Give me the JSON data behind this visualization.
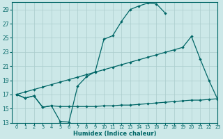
{
  "bg_color": "#cce8e8",
  "line_color": "#006666",
  "grid_color": "#aacccc",
  "xlabel": "Humidex (Indice chaleur)",
  "ylim": [
    13,
    30
  ],
  "xlim": [
    -0.5,
    23
  ],
  "yticks": [
    13,
    15,
    17,
    19,
    21,
    23,
    25,
    27,
    29
  ],
  "xticks": [
    0,
    1,
    2,
    3,
    4,
    5,
    6,
    7,
    8,
    9,
    10,
    11,
    12,
    13,
    14,
    15,
    16,
    17,
    18,
    19,
    20,
    21,
    22,
    23
  ],
  "line1_x": [
    0,
    1,
    2,
    3,
    4,
    5,
    6,
    7,
    8,
    9,
    10,
    11,
    12,
    13,
    14,
    15,
    16,
    17
  ],
  "line1_y": [
    17,
    16.5,
    16.8,
    15.2,
    15.4,
    13.2,
    13.1,
    18.2,
    19.5,
    20.2,
    24.8,
    25.3,
    27.3,
    29.0,
    29.5,
    29.9,
    29.8,
    28.5
  ],
  "line2_x": [
    0,
    1,
    2,
    3,
    4,
    5,
    6,
    7,
    8,
    9,
    10,
    11,
    12,
    13,
    14,
    15,
    16,
    17,
    18,
    19,
    20,
    21,
    22,
    23
  ],
  "line2_y": [
    17,
    17.35,
    17.7,
    18.05,
    18.4,
    18.75,
    19.1,
    19.45,
    19.8,
    20.15,
    20.5,
    20.85,
    21.2,
    21.55,
    21.9,
    22.25,
    22.6,
    22.95,
    23.3,
    23.65,
    25.2,
    22.0,
    19.0,
    16.3
  ],
  "line3_x": [
    0,
    1,
    2,
    3,
    4,
    5,
    6,
    7,
    8,
    9,
    10,
    11,
    12,
    13,
    14,
    15,
    16,
    17,
    18,
    19,
    20,
    21,
    22,
    23
  ],
  "line3_y": [
    17,
    16.5,
    16.8,
    15.2,
    15.4,
    15.3,
    15.3,
    15.3,
    15.3,
    15.3,
    15.4,
    15.4,
    15.5,
    15.5,
    15.6,
    15.7,
    15.8,
    15.9,
    16.0,
    16.1,
    16.2,
    16.2,
    16.3,
    16.4
  ]
}
